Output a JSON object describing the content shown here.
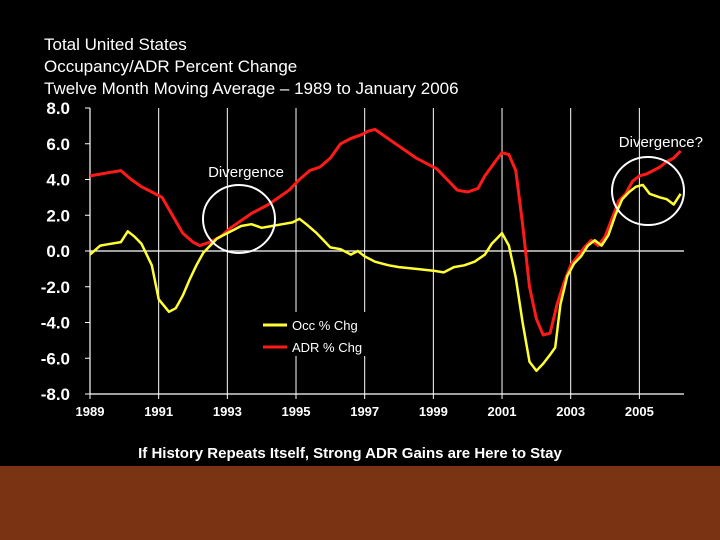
{
  "title_lines": [
    "Total United States",
    "Occupancy/ADR Percent Change",
    "Twelve Month Moving Average – 1989 to January 2006"
  ],
  "footer": "If History Repeats Itself, Strong ADR Gains are Here to Stay",
  "colors": {
    "background": "#000000",
    "footer_band": "#7a3414",
    "occ": "#ffff33",
    "adr": "#ff1a1a",
    "axis": "#ffffff",
    "circle": "#ffffff"
  },
  "chart_data": {
    "type": "line",
    "title": "Total United States Occupancy/ADR Percent Change - Twelve Month Moving Average 1989 to January 2006",
    "xlabel": "",
    "ylabel": "",
    "xlim": [
      1989,
      2006.3
    ],
    "ylim": [
      -8.0,
      8.0
    ],
    "x_ticks": [
      1989,
      1991,
      1993,
      1995,
      1997,
      1999,
      2001,
      2003,
      2005
    ],
    "x_tick_labels": [
      "1989",
      "1991",
      "1993",
      "1995",
      "1997",
      "1999",
      "2001",
      "2003",
      "2005"
    ],
    "y_ticks": [
      8.0,
      6.0,
      4.0,
      2.0,
      0.0,
      -2.0,
      -4.0,
      -6.0,
      -8.0
    ],
    "y_tick_labels": [
      "8.0",
      "6.0",
      "4.0",
      "2.0",
      "0.0",
      "-2.0",
      "-4.0",
      "-6.0",
      "-8.0"
    ],
    "grid": "vertical",
    "legend_position": "center-bottom",
    "series": [
      {
        "name": "Occ % Chg",
        "color_key": "occ",
        "x": [
          1989.0,
          1989.3,
          1989.6,
          1989.9,
          1990.1,
          1990.3,
          1990.5,
          1990.8,
          1991.0,
          1991.3,
          1991.5,
          1991.7,
          1991.9,
          1992.1,
          1992.3,
          1992.5,
          1992.7,
          1993.0,
          1993.2,
          1993.4,
          1993.7,
          1994.0,
          1994.3,
          1994.6,
          1994.9,
          1995.1,
          1995.3,
          1995.6,
          1995.8,
          1996.0,
          1996.3,
          1996.6,
          1996.8,
          1997.0,
          1997.3,
          1997.7,
          1998.0,
          1998.5,
          1999.0,
          1999.3,
          1999.6,
          1999.9,
          2000.2,
          2000.5,
          2000.7,
          2000.85,
          2001.0,
          2001.2,
          2001.4,
          2001.6,
          2001.8,
          2002.0,
          2002.2,
          2002.4,
          2002.55,
          2002.7,
          2002.9,
          2003.1,
          2003.3,
          2003.5,
          2003.7,
          2003.9,
          2004.1,
          2004.3,
          2004.5,
          2004.7,
          2004.9,
          2005.1,
          2005.3,
          2005.6,
          2005.8,
          2006.0,
          2006.2
        ],
        "values": [
          -0.2,
          0.3,
          0.4,
          0.5,
          1.1,
          0.8,
          0.4,
          -0.8,
          -2.7,
          -3.4,
          -3.2,
          -2.5,
          -1.6,
          -0.8,
          -0.1,
          0.3,
          0.7,
          1.0,
          1.2,
          1.4,
          1.5,
          1.3,
          1.4,
          1.5,
          1.6,
          1.8,
          1.5,
          1.0,
          0.6,
          0.2,
          0.1,
          -0.2,
          0.0,
          -0.3,
          -0.6,
          -0.8,
          -0.9,
          -1.0,
          -1.1,
          -1.2,
          -0.9,
          -0.8,
          -0.6,
          -0.2,
          0.4,
          0.7,
          1.0,
          0.3,
          -1.5,
          -4.0,
          -6.2,
          -6.7,
          -6.3,
          -5.8,
          -5.4,
          -3.0,
          -1.4,
          -0.7,
          -0.3,
          0.3,
          0.6,
          0.3,
          0.9,
          2.0,
          2.9,
          3.3,
          3.6,
          3.7,
          3.2,
          3.0,
          2.9,
          2.6,
          3.2
        ]
      },
      {
        "name": "ADR % Chg",
        "color_key": "adr",
        "x": [
          1989.0,
          1989.3,
          1989.6,
          1989.9,
          1990.2,
          1990.5,
          1990.8,
          1991.1,
          1991.4,
          1991.7,
          1992.0,
          1992.2,
          1992.5,
          1992.8,
          1993.1,
          1993.4,
          1993.7,
          1994.0,
          1994.2,
          1994.5,
          1994.8,
          1995.1,
          1995.4,
          1995.7,
          1996.0,
          1996.3,
          1996.6,
          1996.9,
          1997.1,
          1997.3,
          1997.6,
          1997.9,
          1998.2,
          1998.5,
          1998.8,
          1999.1,
          1999.4,
          1999.7,
          2000.0,
          2000.3,
          2000.5,
          2000.8,
          2001.0,
          2001.2,
          2001.4,
          2001.6,
          2001.8,
          2002.0,
          2002.2,
          2002.4,
          2002.6,
          2002.8,
          2003.0,
          2003.2,
          2003.4,
          2003.6,
          2003.8,
          2004.0,
          2004.2,
          2004.4,
          2004.6,
          2004.8,
          2005.0,
          2005.2,
          2005.4,
          2005.6,
          2005.8,
          2006.0,
          2006.2
        ],
        "values": [
          4.2,
          4.3,
          4.4,
          4.5,
          4.0,
          3.6,
          3.3,
          3.0,
          2.0,
          1.0,
          0.5,
          0.3,
          0.5,
          0.8,
          1.3,
          1.7,
          2.1,
          2.4,
          2.6,
          3.0,
          3.4,
          4.0,
          4.5,
          4.7,
          5.2,
          6.0,
          6.3,
          6.5,
          6.7,
          6.8,
          6.4,
          6.0,
          5.6,
          5.2,
          4.9,
          4.6,
          4.0,
          3.4,
          3.3,
          3.5,
          4.2,
          5.0,
          5.5,
          5.4,
          4.5,
          1.5,
          -2.0,
          -3.8,
          -4.7,
          -4.6,
          -3.0,
          -1.8,
          -0.8,
          -0.3,
          0.2,
          0.6,
          0.3,
          0.8,
          1.8,
          2.8,
          3.2,
          3.9,
          4.2,
          4.3,
          4.5,
          4.7,
          5.0,
          5.2,
          5.6
        ]
      }
    ],
    "annotations": [
      {
        "text": "Divergence",
        "x": 1993.9,
        "y": 1.7,
        "circle": true
      },
      {
        "text": "Divergence?",
        "x": 2005.1,
        "y": 3.4,
        "circle": true
      }
    ]
  }
}
